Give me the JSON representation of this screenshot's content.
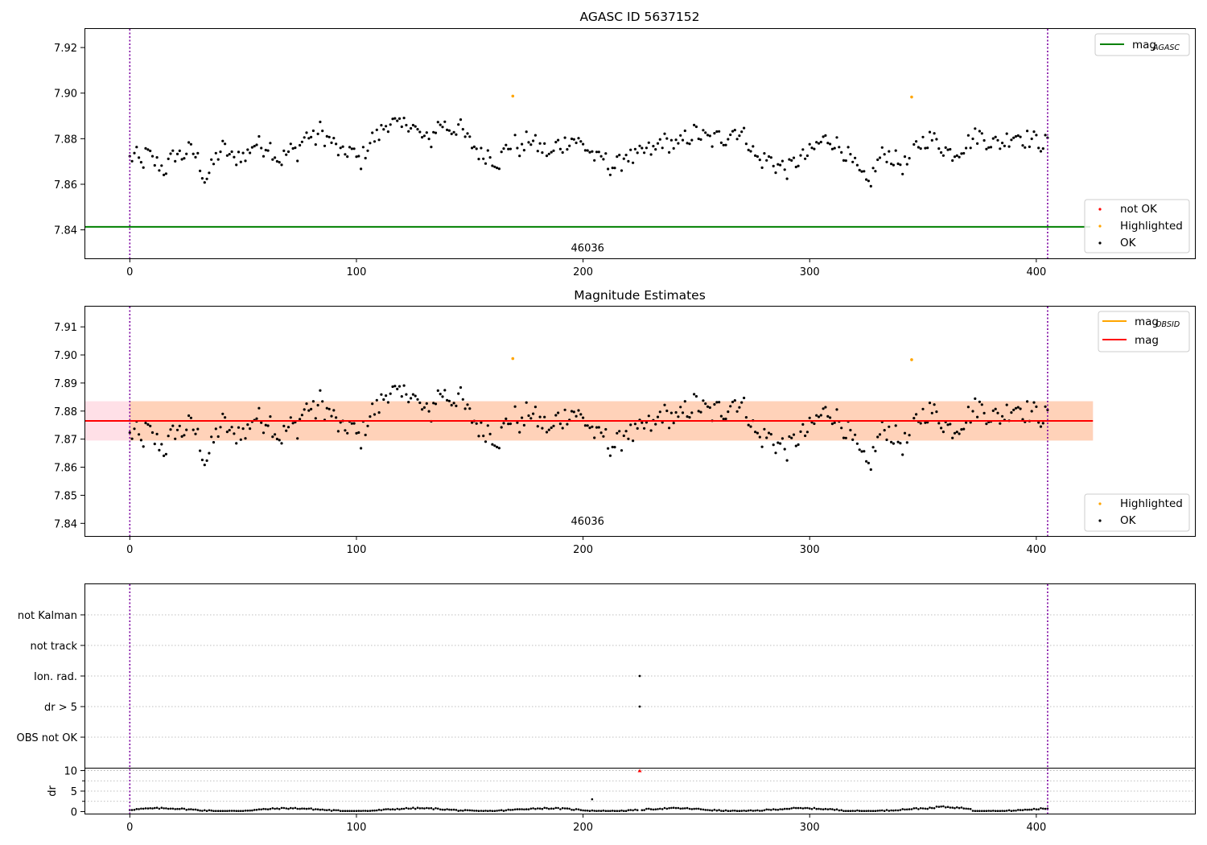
{
  "chart_data": [
    {
      "type": "scatter",
      "title": "AGASC ID 5637152",
      "xlim": [
        -20,
        470
      ],
      "ylim": [
        7.8275,
        7.9285
      ],
      "x_ticks": [
        0,
        100,
        200,
        300,
        400
      ],
      "y_ticks": [
        7.84,
        7.86,
        7.88,
        7.9,
        7.92
      ],
      "y_tick_labels": [
        "7.84",
        "7.86",
        "7.88",
        "7.90",
        "7.92"
      ],
      "mag_agasc": 7.8413,
      "vlines_x": [
        0,
        405
      ],
      "annotation": {
        "text": "46036",
        "x": 202,
        "y": 7.8305
      },
      "highlighted_points": [
        {
          "x": 169,
          "y": 7.8987
        },
        {
          "x": 345,
          "y": 7.8983
        }
      ],
      "ok_points_summary": {
        "n": 405,
        "x_range": [
          0,
          405
        ],
        "y_range": [
          7.857,
          7.894
        ]
      },
      "legend_lines": [
        {
          "label": "mag",
          "sub": "AGASC",
          "color": "#008000"
        }
      ],
      "legend_points": [
        {
          "label": "not OK",
          "color": "#ff0000"
        },
        {
          "label": "Highlighted",
          "color": "#ffa500"
        },
        {
          "label": "OK",
          "color": "#000000"
        }
      ]
    },
    {
      "type": "scatter",
      "title": "Magnitude Estimates",
      "xlim": [
        -20,
        470
      ],
      "ylim": [
        7.8355,
        7.9175
      ],
      "x_ticks": [
        0,
        100,
        200,
        300,
        400
      ],
      "y_ticks": [
        7.84,
        7.85,
        7.86,
        7.87,
        7.88,
        7.89,
        7.9,
        7.91
      ],
      "y_tick_labels": [
        "7.84",
        "7.85",
        "7.86",
        "7.87",
        "7.88",
        "7.89",
        "7.90",
        "7.91"
      ],
      "mag_obsid": 7.8765,
      "mag": 7.8765,
      "band_outer": [
        7.8695,
        7.8835
      ],
      "band_inner": [
        7.8695,
        7.8835
      ],
      "band_x_end": 425,
      "vlines_x": [
        0,
        405
      ],
      "annotation": {
        "text": "46036",
        "x": 202,
        "y": 7.8395
      },
      "highlighted_points": [
        {
          "x": 169,
          "y": 7.8987
        },
        {
          "x": 345,
          "y": 7.8983
        }
      ],
      "legend_lines": [
        {
          "label": "mag",
          "sub": "OBSID",
          "color": "#ffa500"
        },
        {
          "label": "mag",
          "sub": "",
          "color": "#ff0000"
        }
      ],
      "legend_points": [
        {
          "label": "Highlighted",
          "color": "#ffa500"
        },
        {
          "label": "OK",
          "color": "#000000"
        }
      ]
    },
    {
      "type": "scatter",
      "xlim": [
        -20,
        470
      ],
      "x_ticks": [
        0,
        100,
        200,
        300,
        400
      ],
      "flag_labels": [
        "not Kalman",
        "not track",
        "Ion. rad.",
        "dr > 5",
        "OBS not OK"
      ],
      "flag_points": [
        {
          "flag": "Ion. rad.",
          "x": 225
        },
        {
          "flag": "dr > 5",
          "x": 225
        }
      ],
      "dr_ylabel": "dr",
      "dr_ylim": [
        -0.5,
        10.5
      ],
      "dr_y_ticks": [
        0,
        5,
        10
      ],
      "dr_y_tick_labels": [
        "0",
        "5",
        "10"
      ],
      "dr_clipped_point": {
        "x": 225,
        "y": 10
      },
      "dr_typical_range": [
        0.2,
        1.2
      ],
      "vlines_x": [
        0,
        405
      ]
    }
  ]
}
